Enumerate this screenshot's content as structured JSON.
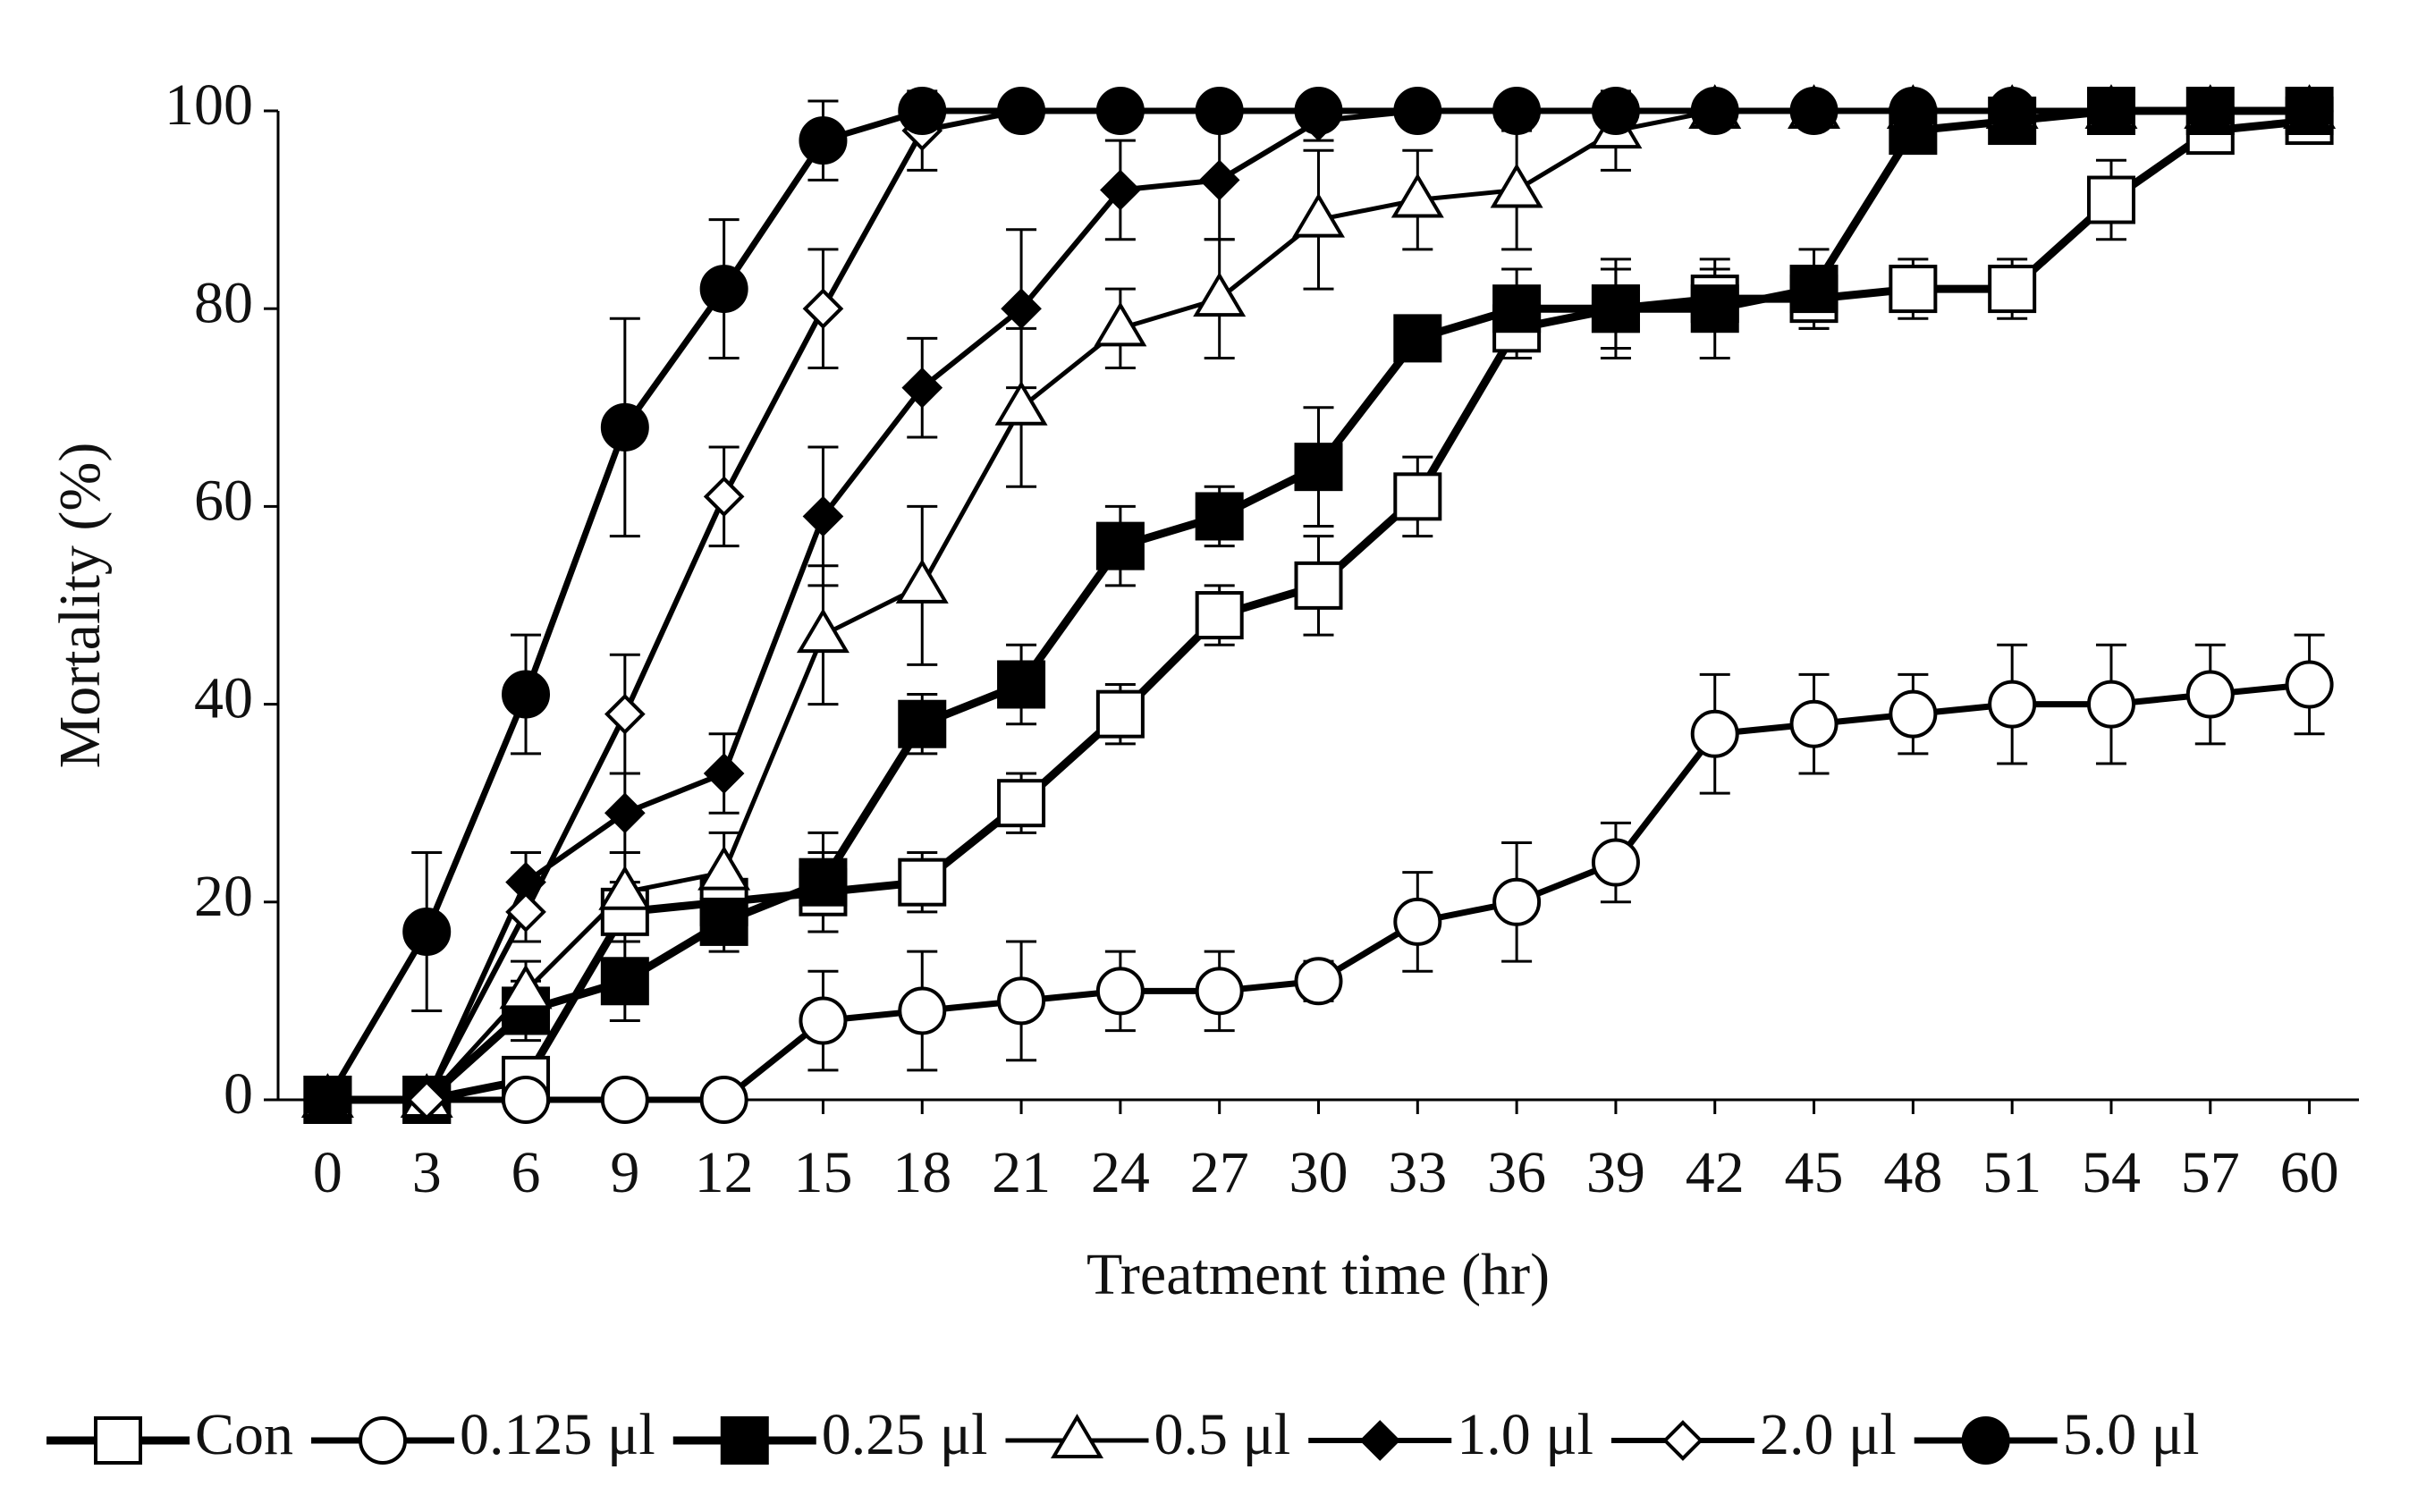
{
  "chart_data": {
    "type": "line",
    "x_label": "Treatment time (hr)",
    "y_label": "Mortality (%)",
    "x": [
      0,
      3,
      6,
      9,
      12,
      15,
      18,
      21,
      24,
      27,
      30,
      33,
      36,
      39,
      42,
      45,
      48,
      51,
      54,
      57,
      60
    ],
    "xlim": [
      -1.5,
      61.5
    ],
    "xticks": [
      0,
      3,
      6,
      9,
      12,
      15,
      18,
      21,
      24,
      27,
      30,
      33,
      36,
      39,
      42,
      45,
      48,
      51,
      54,
      57,
      60
    ],
    "ylim": [
      0,
      100
    ],
    "yticks": [
      0,
      20,
      40,
      60,
      80,
      100
    ],
    "legend": "bottom",
    "series": [
      {
        "name": "Con",
        "color": "#000000",
        "marker": "square",
        "marker_fill": "#ffffff",
        "line_width": 9,
        "values": [
          0,
          0,
          2,
          19,
          20,
          21,
          22,
          30,
          39,
          49,
          52,
          61,
          78,
          80,
          81,
          81,
          82,
          82,
          91,
          98,
          99
        ],
        "errors": [
          0,
          0,
          2,
          3,
          3,
          4,
          3,
          3,
          3,
          3,
          5,
          4,
          3,
          4,
          3,
          3,
          3,
          3,
          4,
          2,
          1
        ]
      },
      {
        "name": "0.125 μl",
        "color": "#000000",
        "marker": "circle",
        "marker_fill": "#ffffff",
        "line_width": 7,
        "values": [
          0,
          0,
          0,
          0,
          0,
          8,
          9,
          10,
          11,
          11,
          12,
          18,
          20,
          24,
          37,
          38,
          39,
          40,
          40,
          41,
          42
        ],
        "errors": [
          0,
          0,
          0,
          0,
          0,
          5,
          6,
          6,
          4,
          4,
          2,
          5,
          6,
          4,
          6,
          5,
          4,
          6,
          6,
          5,
          5
        ]
      },
      {
        "name": "0.25 μl",
        "color": "#000000",
        "marker": "square",
        "marker_fill": "#000000",
        "line_width": 9,
        "values": [
          0,
          0,
          9,
          12,
          18,
          22,
          38,
          42,
          56,
          59,
          64,
          77,
          80,
          80,
          80,
          82,
          98,
          99,
          100,
          100,
          100
        ],
        "errors": [
          0,
          0,
          3,
          4,
          3,
          5,
          3,
          4,
          4,
          3,
          6,
          2,
          4,
          5,
          5,
          4,
          2,
          1,
          0,
          0,
          0
        ]
      },
      {
        "name": "0.5 μl",
        "color": "#000000",
        "marker": "triangle",
        "marker_fill": "#ffffff",
        "line_width": 5,
        "values": [
          0,
          0,
          11,
          21,
          23,
          47,
          52,
          70,
          78,
          81,
          89,
          91,
          92,
          98,
          100,
          100,
          100,
          100,
          100,
          100,
          100
        ],
        "errors": [
          0,
          0,
          3,
          4,
          4,
          7,
          8,
          8,
          4,
          6,
          7,
          5,
          6,
          4,
          0,
          0,
          0,
          0,
          0,
          0,
          0
        ]
      },
      {
        "name": "1.0 μl",
        "color": "#000000",
        "marker": "diamond",
        "marker_fill": "#000000",
        "line_width": 6,
        "values": [
          0,
          0,
          22,
          29,
          33,
          59,
          72,
          80,
          92,
          93,
          99,
          100,
          100,
          100,
          100,
          100,
          100,
          100,
          100,
          100,
          100
        ],
        "errors": [
          0,
          0,
          3,
          4,
          4,
          7,
          5,
          8,
          5,
          6,
          2,
          0,
          0,
          0,
          0,
          0,
          0,
          0,
          0,
          0,
          0
        ]
      },
      {
        "name": "2.0 μl",
        "color": "#000000",
        "marker": "diamond",
        "marker_fill": "#ffffff",
        "line_width": 6,
        "values": [
          0,
          0,
          19,
          39,
          61,
          80,
          98,
          100,
          100,
          100,
          100,
          100,
          100,
          100,
          100,
          100,
          100,
          100,
          100,
          100,
          100
        ],
        "errors": [
          0,
          0,
          3,
          6,
          5,
          6,
          4,
          0,
          0,
          0,
          0,
          0,
          0,
          0,
          0,
          0,
          0,
          0,
          0,
          0,
          0
        ]
      },
      {
        "name": "5.0 μl",
        "color": "#000000",
        "marker": "circle",
        "marker_fill": "#000000",
        "line_width": 7,
        "values": [
          0,
          17,
          41,
          68,
          82,
          97,
          100,
          100,
          100,
          100,
          100,
          100,
          100,
          100,
          100,
          100,
          100,
          100,
          100,
          100,
          100
        ],
        "errors": [
          0,
          8,
          6,
          11,
          7,
          4,
          0,
          0,
          0,
          0,
          0,
          0,
          0,
          0,
          0,
          0,
          0,
          0,
          0,
          0,
          0
        ]
      }
    ]
  }
}
